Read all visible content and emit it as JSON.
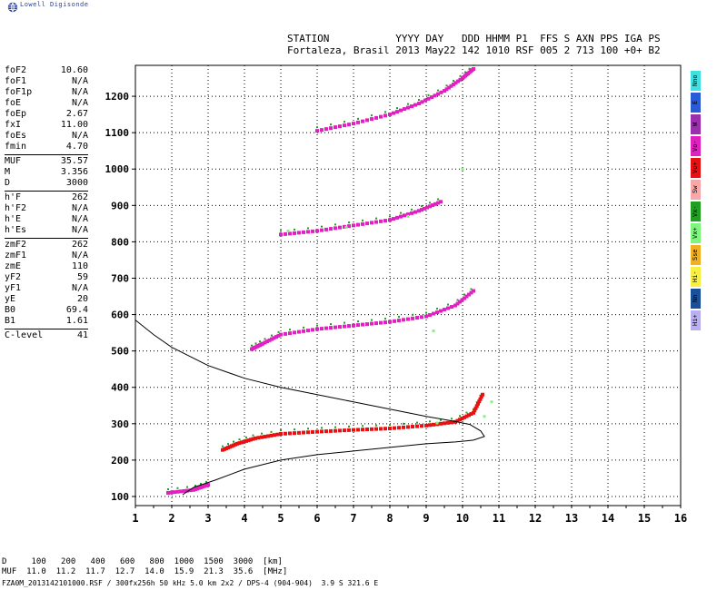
{
  "logo": {
    "icon": "globe-icon",
    "text": "Lowell Digisonde"
  },
  "header": {
    "line1": "STATION           YYYY DAY   DDD HHMM P1  FFS S AXN PPS IGA PS",
    "line2": "Fortaleza, Brasil 2013 May22 142 1010 RSF 005 2 713 100 +0+ B2"
  },
  "params": [
    {
      "label": "foF2",
      "value": "10.60"
    },
    {
      "label": "foF1",
      "value": "N/A"
    },
    {
      "label": "foF1p",
      "value": "N/A"
    },
    {
      "label": "foE",
      "value": "N/A"
    },
    {
      "label": "foEp",
      "value": "2.67"
    },
    {
      "label": "fxI",
      "value": "11.00"
    },
    {
      "label": "foEs",
      "value": "N/A"
    },
    {
      "label": "fmin",
      "value": "4.70"
    },
    {
      "sep": true
    },
    {
      "label": "MUF",
      "value": "35.57"
    },
    {
      "label": "M",
      "value": "3.356"
    },
    {
      "label": "D",
      "value": "3000"
    },
    {
      "sep": true
    },
    {
      "label": "h'F",
      "value": "262"
    },
    {
      "label": "h'F2",
      "value": "N/A"
    },
    {
      "label": "h'E",
      "value": "N/A"
    },
    {
      "label": "h'Es",
      "value": "N/A"
    },
    {
      "sep": true
    },
    {
      "label": "zmF2",
      "value": "262"
    },
    {
      "label": "zmF1",
      "value": "N/A"
    },
    {
      "label": "zmE",
      "value": "110"
    },
    {
      "label": "yF2",
      "value": "59"
    },
    {
      "label": "yF1",
      "value": "N/A"
    },
    {
      "label": "yE",
      "value": "20"
    },
    {
      "label": "B0",
      "value": "69.4"
    },
    {
      "label": "B1",
      "value": "1.61"
    },
    {
      "sep": true
    },
    {
      "label": "C-level",
      "value": "41"
    }
  ],
  "legend": [
    {
      "label": "Nno",
      "color": "#40e0e0"
    },
    {
      "label": "E",
      "color": "#2a5bd7"
    },
    {
      "label": "W",
      "color": "#9b2fae"
    },
    {
      "label": "Vo-",
      "color": "#e020c0"
    },
    {
      "label": "Vo+",
      "color": "#e81010"
    },
    {
      "label": "Sw",
      "color": "#f7a8a8"
    },
    {
      "label": "Vx-",
      "color": "#20a020"
    },
    {
      "label": "Vx+",
      "color": "#7cf77c"
    },
    {
      "label": "Sse",
      "color": "#f0b020"
    },
    {
      "label": "Hi-",
      "color": "#f7f040"
    },
    {
      "label": "Nn",
      "color": "#1a4f9a"
    },
    {
      "label": "Hi+",
      "color": "#b8b0f0"
    }
  ],
  "chart_data": {
    "type": "scatter",
    "x_ticks": [
      "1",
      "2",
      "3",
      "4",
      "5",
      "6",
      "7",
      "8",
      "9",
      "10",
      "11",
      "12",
      "13",
      "14",
      "15",
      "16"
    ],
    "y_ticks": [
      "100",
      "200",
      "300",
      "400",
      "500",
      "600",
      "700",
      "800",
      "900",
      "1000",
      "1100",
      "1200"
    ],
    "xlim": [
      1,
      16
    ],
    "ylim": [
      75,
      1285
    ],
    "grid": true,
    "series": [
      {
        "color": "#e81010",
        "points": [
          [
            3.4,
            228
          ],
          [
            3.8,
            245
          ],
          [
            4.3,
            260
          ],
          [
            5.0,
            272
          ],
          [
            6.0,
            278
          ],
          [
            7.0,
            283
          ],
          [
            8.0,
            287
          ],
          [
            9.0,
            295
          ],
          [
            9.8,
            305
          ],
          [
            10.3,
            330
          ],
          [
            10.55,
            380
          ]
        ]
      },
      {
        "color": "#e020c0",
        "points": [
          [
            4.2,
            505
          ],
          [
            4.5,
            520
          ],
          [
            5.0,
            545
          ],
          [
            6.0,
            560
          ],
          [
            7.0,
            570
          ],
          [
            8.0,
            580
          ],
          [
            9.0,
            595
          ],
          [
            9.8,
            625
          ],
          [
            10.3,
            665
          ]
        ]
      },
      {
        "color": "#e020c0",
        "points": [
          [
            5.0,
            820
          ],
          [
            6.0,
            830
          ],
          [
            7.0,
            845
          ],
          [
            8.0,
            860
          ],
          [
            8.8,
            885
          ],
          [
            9.4,
            910
          ]
        ]
      },
      {
        "color": "#e020c0",
        "points": [
          [
            6.0,
            1105
          ],
          [
            7.0,
            1125
          ],
          [
            8.0,
            1150
          ],
          [
            8.8,
            1180
          ],
          [
            9.5,
            1215
          ],
          [
            10.0,
            1250
          ],
          [
            10.3,
            1275
          ]
        ]
      },
      {
        "color": "#e020c0",
        "points": [
          [
            1.9,
            110
          ],
          [
            2.6,
            118
          ],
          [
            3.0,
            132
          ]
        ]
      },
      {
        "color": "#7cf77c",
        "points": [
          [
            5.2,
            830
          ],
          [
            6.8,
            840
          ],
          [
            8.5,
            870
          ],
          [
            9.2,
            555
          ],
          [
            10.0,
            1000
          ],
          [
            10.6,
            320
          ],
          [
            10.8,
            360
          ],
          [
            9.3,
            302
          ]
        ]
      }
    ],
    "profile": [
      [
        1.0,
        585
      ],
      [
        1.5,
        545
      ],
      [
        2.0,
        510
      ],
      [
        3.0,
        460
      ],
      [
        4.0,
        425
      ],
      [
        5.0,
        400
      ],
      [
        6.0,
        380
      ],
      [
        7.0,
        360
      ],
      [
        8.0,
        340
      ],
      [
        9.0,
        320
      ],
      [
        9.7,
        308
      ],
      [
        10.2,
        298
      ],
      [
        10.5,
        280
      ],
      [
        10.6,
        265
      ],
      [
        10.3,
        255
      ],
      [
        9.8,
        250
      ],
      [
        9.0,
        245
      ],
      [
        8.0,
        235
      ],
      [
        7.0,
        225
      ],
      [
        6.0,
        215
      ],
      [
        5.0,
        200
      ],
      [
        4.0,
        175
      ],
      [
        3.2,
        145
      ],
      [
        2.6,
        125
      ],
      [
        2.3,
        105
      ]
    ]
  },
  "footer": {
    "line1": "D     100   200   400   600   800  1000  1500  3000  [km]",
    "line2": "MUF  11.0  11.2  11.7  12.7  14.0  15.9  21.3  35.6  [MHz]",
    "line3": "FZA0M_2013142101000.RSF / 300fx256h 50 kHz 5.0 km 2x2 / DPS-4 (904-904)  3.9 S 321.6 E"
  }
}
